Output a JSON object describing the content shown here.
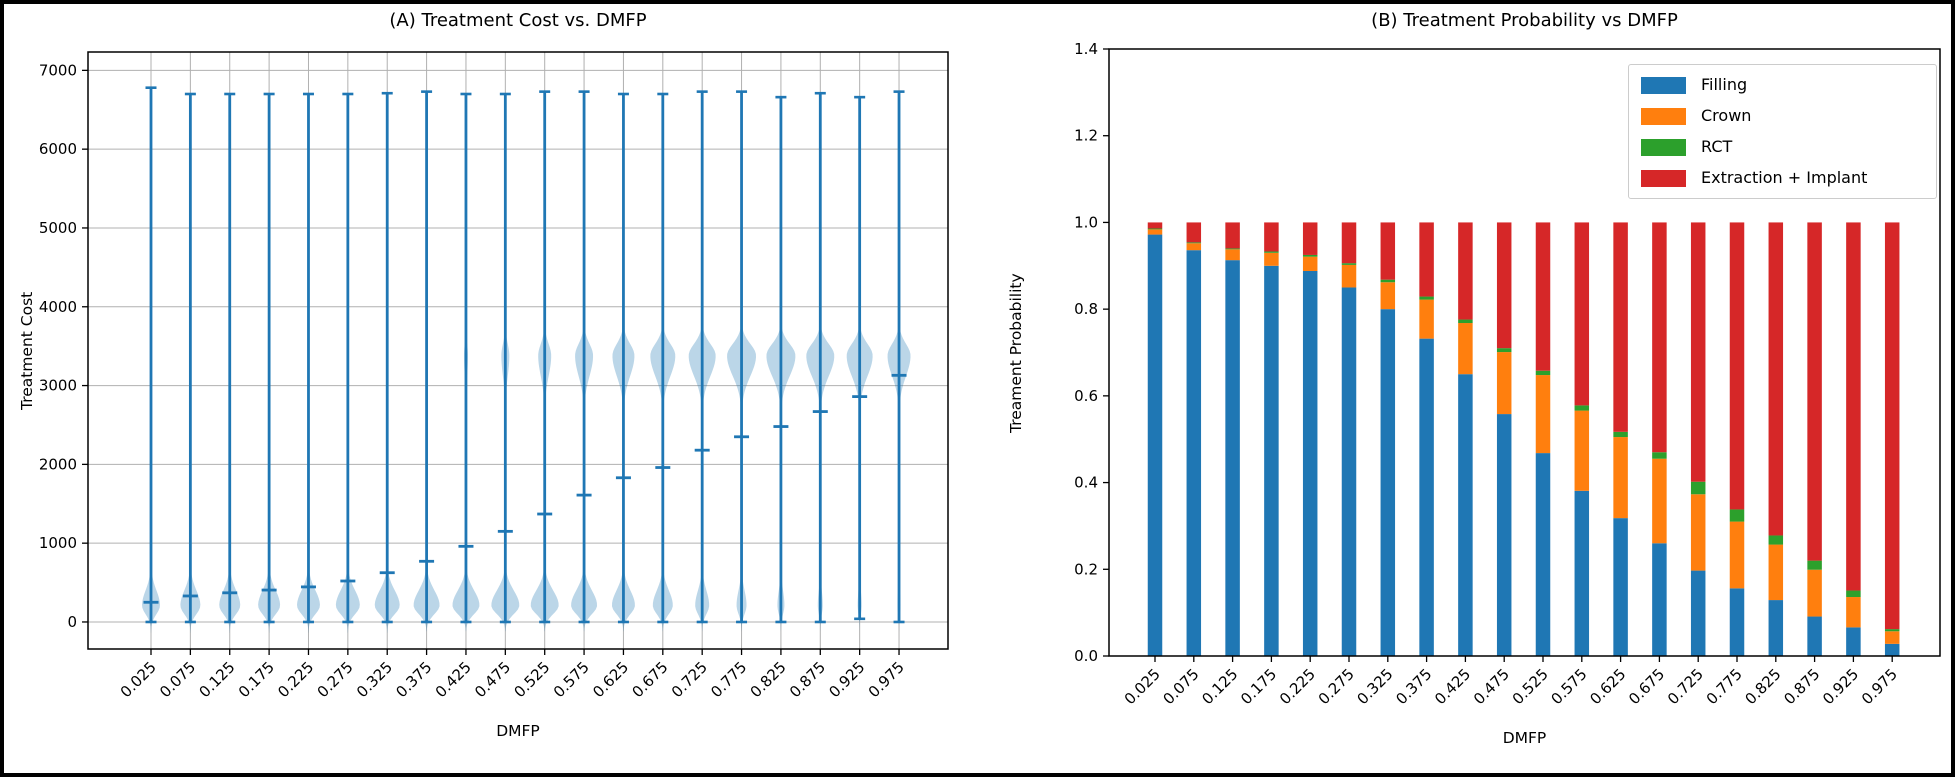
{
  "chart_data": [
    {
      "type": "violin",
      "panel": "A",
      "title": "(A) Treatment Cost vs. DMFP",
      "xlabel": "DMFP",
      "ylabel": "Treatment Cost",
      "categories": [
        "0.025",
        "0.075",
        "0.125",
        "0.175",
        "0.225",
        "0.275",
        "0.325",
        "0.375",
        "0.425",
        "0.475",
        "0.525",
        "0.575",
        "0.625",
        "0.675",
        "0.725",
        "0.775",
        "0.825",
        "0.875",
        "0.925",
        "0.975"
      ],
      "yticks": [
        0,
        1000,
        2000,
        3000,
        4000,
        5000,
        6000,
        7000
      ],
      "ylim": [
        -343,
        7233
      ],
      "grid": true,
      "series": {
        "name": "Treatment Cost distribution",
        "line_color": "#1f77b4",
        "fill_color": "rgba(31,119,180,0.30)",
        "means": [
          250,
          330,
          370,
          405,
          445,
          520,
          625,
          770,
          960,
          1150,
          1370,
          1610,
          1830,
          1960,
          2180,
          2350,
          2480,
          2670,
          2860,
          3130
        ],
        "maxes": [
          6780,
          6700,
          6700,
          6700,
          6700,
          6700,
          6710,
          6730,
          6700,
          6700,
          6730,
          6730,
          6700,
          6700,
          6730,
          6730,
          6660,
          6710,
          6660,
          6730
        ],
        "mins": [
          0,
          0,
          0,
          0,
          0,
          0,
          0,
          0,
          0,
          0,
          0,
          0,
          0,
          0,
          0,
          0,
          0,
          0,
          40,
          0
        ],
        "lower_mode": {
          "center": 210,
          "sigma_below": 110,
          "sigma_above": 190,
          "half_widths": [
            9,
            10,
            10.5,
            11,
            11.5,
            12,
            12.5,
            13,
            13.5,
            14,
            14,
            13,
            11.5,
            10,
            7,
            5,
            3.5,
            2.5,
            2,
            1.5
          ]
        },
        "upper_mode": {
          "center": 3380,
          "sigma_below": 260,
          "sigma_above": 150,
          "half_widths": [
            0,
            0,
            0,
            0,
            0,
            0,
            0,
            0.8,
            2,
            4,
            6.5,
            9,
            11,
            12.5,
            13.5,
            14.5,
            14.5,
            14,
            13,
            11.5
          ]
        }
      }
    },
    {
      "type": "stacked_bar",
      "panel": "B",
      "title": "(B) Treatment Probability vs DMFP",
      "xlabel": "DMFP",
      "ylabel": "Treament Probability",
      "categories": [
        "0.025",
        "0.075",
        "0.125",
        "0.175",
        "0.225",
        "0.275",
        "0.325",
        "0.375",
        "0.425",
        "0.475",
        "0.525",
        "0.575",
        "0.625",
        "0.675",
        "0.725",
        "0.775",
        "0.825",
        "0.875",
        "0.925",
        "0.975"
      ],
      "yticks": [
        0.0,
        0.2,
        0.4,
        0.6,
        0.8,
        1.0,
        1.2,
        1.4
      ],
      "ylim": [
        0,
        1.4
      ],
      "grid": false,
      "legend": {
        "position": "upper right",
        "entries": [
          {
            "label": "Filling",
            "color": "#1f77b4"
          },
          {
            "label": "Crown",
            "color": "#ff7f0e"
          },
          {
            "label": "RCT",
            "color": "#2ca02c"
          },
          {
            "label": "Extraction + Implant",
            "color": "#d62728"
          }
        ]
      },
      "series": [
        {
          "name": "Filling",
          "color": "#1f77b4",
          "values": [
            0.972,
            0.936,
            0.913,
            0.9,
            0.888,
            0.85,
            0.8,
            0.732,
            0.65,
            0.558,
            0.468,
            0.381,
            0.318,
            0.26,
            0.197,
            0.156,
            0.129,
            0.091,
            0.066,
            0.028
          ]
        },
        {
          "name": "Crown",
          "color": "#ff7f0e",
          "values": [
            0.012,
            0.016,
            0.025,
            0.03,
            0.033,
            0.052,
            0.062,
            0.09,
            0.118,
            0.143,
            0.18,
            0.185,
            0.187,
            0.195,
            0.176,
            0.154,
            0.128,
            0.108,
            0.07,
            0.029
          ]
        },
        {
          "name": "RCT",
          "color": "#2ca02c",
          "values": [
            0.002,
            0.002,
            0.002,
            0.003,
            0.004,
            0.004,
            0.006,
            0.007,
            0.008,
            0.009,
            0.01,
            0.012,
            0.012,
            0.015,
            0.029,
            0.028,
            0.021,
            0.021,
            0.015,
            0.005
          ]
        },
        {
          "name": "Extraction + Implant",
          "color": "#d62728",
          "values": [
            0.014,
            0.046,
            0.06,
            0.067,
            0.075,
            0.094,
            0.132,
            0.171,
            0.224,
            0.29,
            0.342,
            0.422,
            0.483,
            0.53,
            0.598,
            0.662,
            0.722,
            0.78,
            0.849,
            0.938
          ]
        }
      ]
    }
  ],
  "style": {
    "grid_color": "#b0b0b0",
    "spine_color": "#000000",
    "tick_label_color": "#000000",
    "figure_border_color": "#000000",
    "background": "#ffffff"
  }
}
